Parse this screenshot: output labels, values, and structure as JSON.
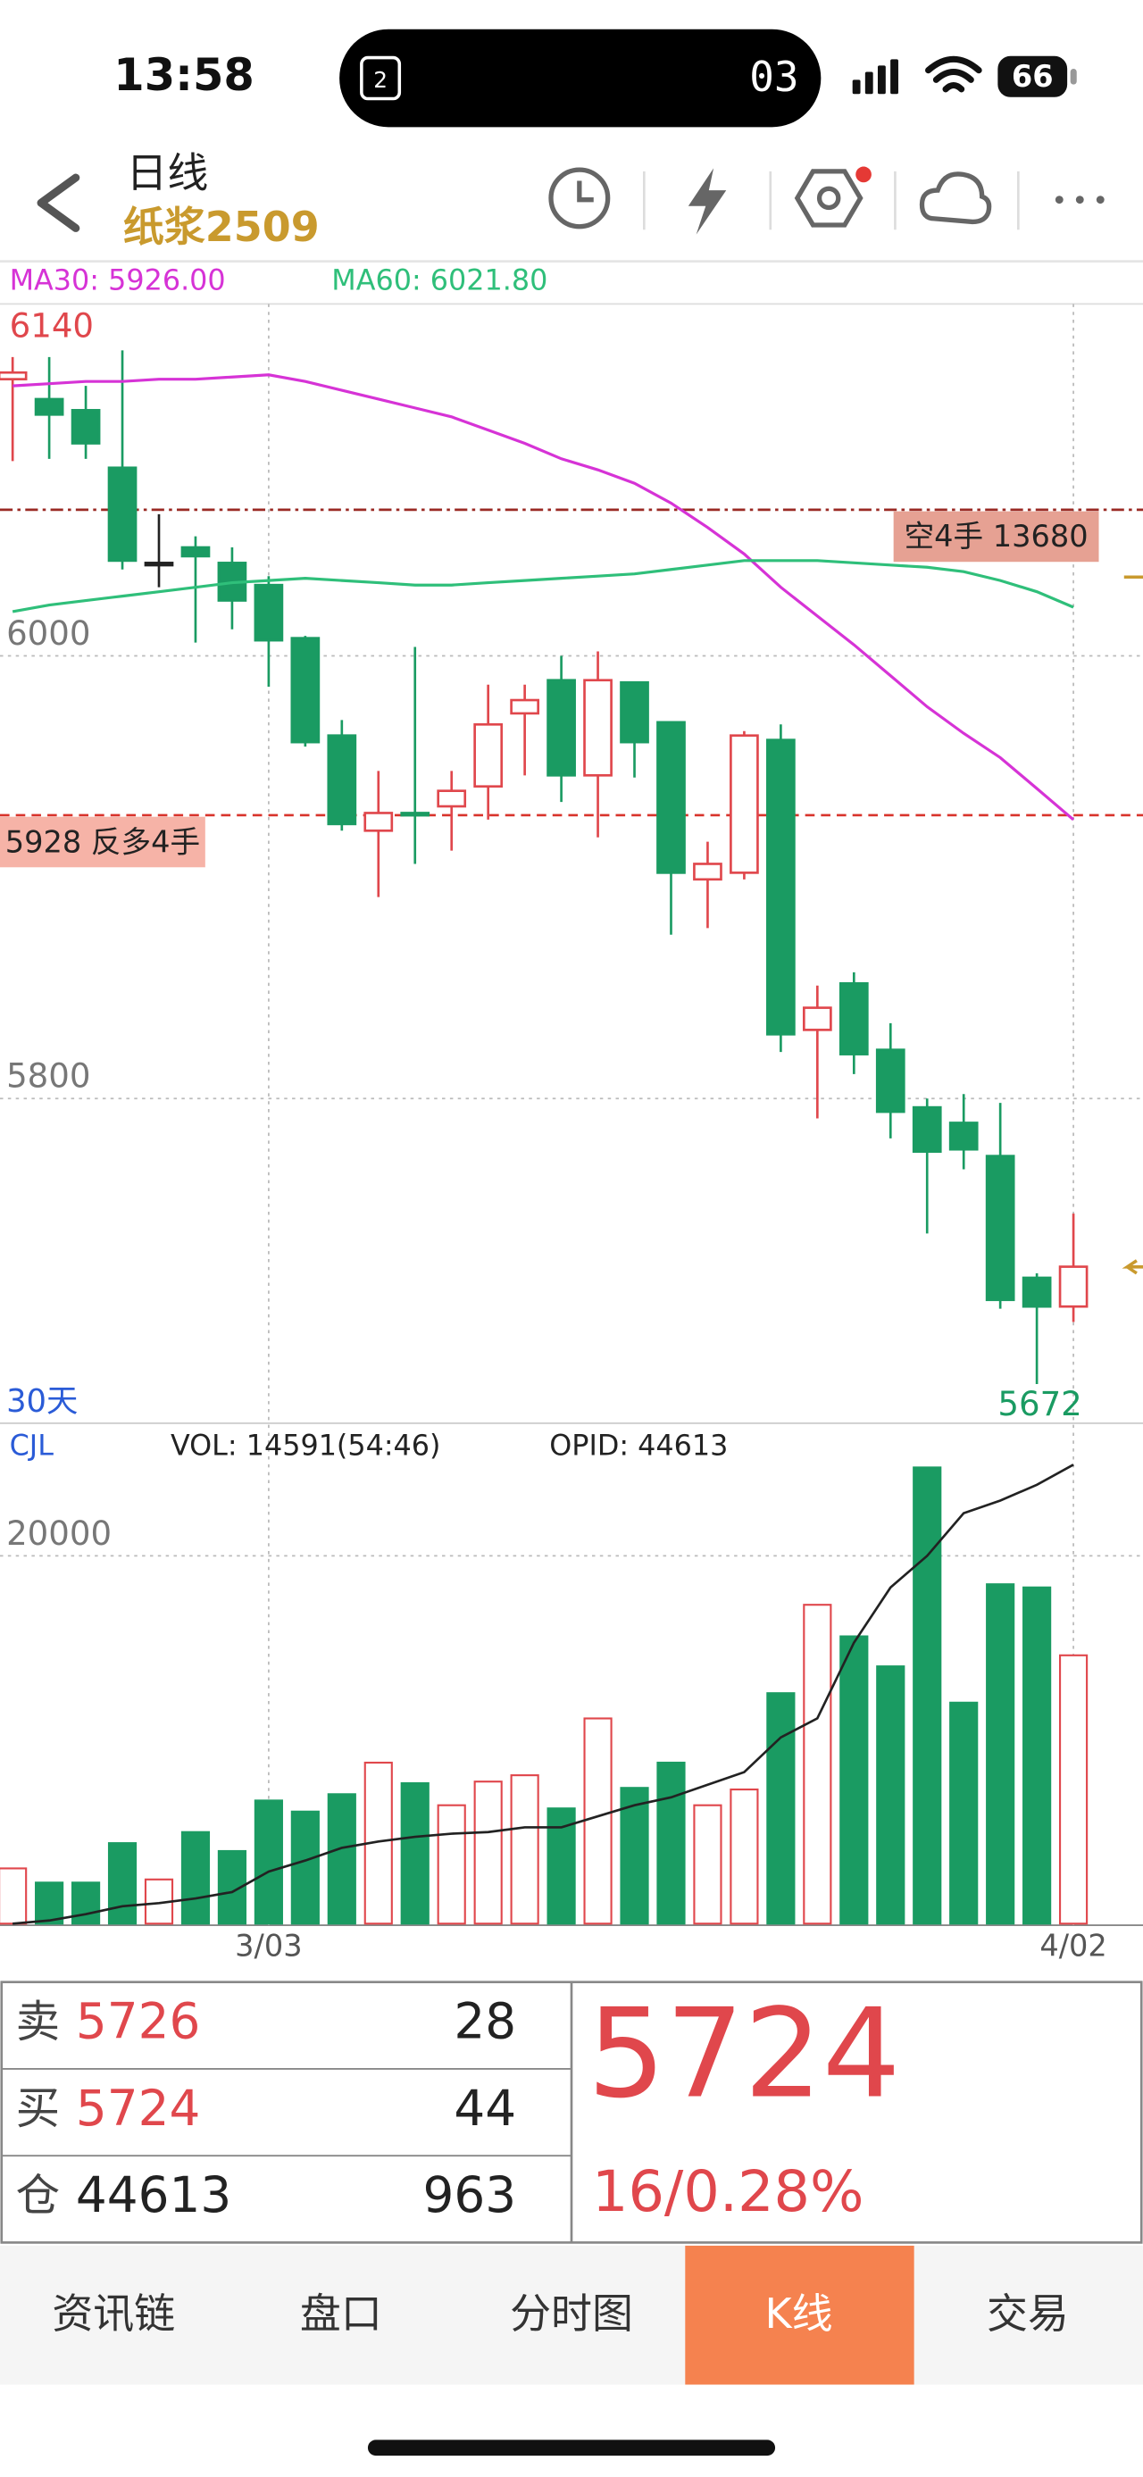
{
  "status_bar": {
    "time": "13:58",
    "island_text": "03",
    "battery": "66"
  },
  "header": {
    "title": "日线",
    "symbol": "纸浆2509"
  },
  "chart_data": [
    {
      "type": "candlestick",
      "categories": [
        null,
        null,
        null,
        null,
        null,
        null,
        null,
        "3/03",
        null,
        null,
        null,
        null,
        null,
        null,
        null,
        null,
        null,
        null,
        null,
        null,
        null,
        null,
        null,
        null,
        null,
        null,
        null,
        null,
        null,
        "4/02"
      ],
      "open": [
        6125,
        6116,
        6111,
        6085,
        6042,
        6049,
        6042,
        6032,
        6008,
        5964,
        5921,
        5929,
        5932,
        5941,
        5974,
        5989,
        5946,
        5988,
        5970,
        5899,
        5902,
        5962,
        5831,
        5852,
        5822,
        5796,
        5789,
        5774,
        5719,
        5706
      ],
      "close": [
        6128,
        6109,
        6096,
        6043,
        6042,
        6045,
        6025,
        6007,
        5961,
        5924,
        5929,
        5928,
        5939,
        5969,
        5980,
        5946,
        5989,
        5961,
        5902,
        5906,
        5964,
        5829,
        5841,
        5820,
        5794,
        5776,
        5777,
        5709,
        5706,
        5724
      ],
      "high": [
        6135,
        6135,
        6122,
        6138,
        6064,
        6054,
        6049,
        6036,
        6009,
        5971,
        5948,
        6004,
        5948,
        5987,
        5987,
        6000,
        6002,
        5988,
        5970,
        5916,
        5966,
        5969,
        5851,
        5857,
        5834,
        5800,
        5802,
        5798,
        5721,
        5748
      ],
      "low": [
        6088,
        6089,
        6089,
        6039,
        6031,
        6006,
        6012,
        5986,
        5959,
        5921,
        5891,
        5906,
        5912,
        5926,
        5946,
        5934,
        5918,
        5945,
        5874,
        5877,
        5899,
        5821,
        5791,
        5811,
        5782,
        5739,
        5768,
        5705,
        5671,
        5699
      ],
      "up_color": "#e0474c",
      "down_color": "#1a9b62",
      "flat_color": "#222222",
      "series": [
        {
          "name": "MA30",
          "legend_label": "MA30: 5926.00",
          "color": "#d633d6",
          "values": [
            6122,
            6123,
            6124,
            6124,
            6125,
            6125,
            6126,
            6127,
            6124,
            6120,
            6116,
            6112,
            6108,
            6102,
            6096,
            6089,
            6084,
            6078,
            6069,
            6058,
            6046,
            6031,
            6018,
            6005,
            5991,
            5977,
            5965,
            5954,
            5940,
            5926
          ]
        },
        {
          "name": "MA60",
          "legend_label": "MA60: 6021.80",
          "color": "#2fbf7a",
          "values": [
            6020,
            6023,
            6025,
            6027,
            6029,
            6031,
            6033,
            6034,
            6035,
            6034,
            6033,
            6032,
            6032,
            6033,
            6034,
            6035,
            6036,
            6037,
            6039,
            6041,
            6043,
            6043,
            6043,
            6042,
            6041,
            6040,
            6038,
            6034,
            6029,
            6022
          ]
        }
      ],
      "ylim": [
        5654,
        6159
      ],
      "yticks": [
        6000,
        5800
      ],
      "grid": true,
      "high_label": 6140,
      "low_label": 5672,
      "period_label": "30天",
      "price_lines": [
        {
          "label": "空4手 13680",
          "value": 6066,
          "color": "#9a2a24",
          "style": "dashdot",
          "side": "right"
        },
        {
          "label": "5928 反多4手",
          "value": 5928,
          "color": "#d8332b",
          "style": "dashed",
          "side": "left"
        }
      ]
    },
    {
      "type": "bar",
      "title": "CJL",
      "series": [
        {
          "name": "VOL",
          "legend_label": "VOL: 14591(54:46)",
          "values": [
            3004,
            2232,
            2232,
            4378,
            2403,
            4979,
            3948,
            6695,
            6094,
            7039,
            8755,
            7639,
            6438,
            7725,
            8069,
            6266,
            11159,
            7382,
            8755,
            6438,
            7296,
            12532,
            17339,
            15622,
            13991,
            24807,
            12017,
            18455,
            18283,
            14591
          ]
        },
        {
          "name": "OPID",
          "legend_label": "OPID: 44613",
          "axis": "y2",
          "color": "#222222",
          "values": [
            20000,
            20169,
            20508,
            20931,
            21100,
            21355,
            21693,
            22794,
            23386,
            24064,
            24402,
            24656,
            24826,
            24910,
            25164,
            25164,
            25757,
            26350,
            26773,
            27450,
            28127,
            29990,
            31006,
            35069,
            38033,
            39726,
            42011,
            42689,
            43536,
            44613
          ]
        }
      ],
      "ylim": [
        0,
        26870
      ],
      "yticks": [
        20000
      ],
      "y2lim": [
        20000,
        46500
      ],
      "grid": true
    }
  ],
  "quote": {
    "rows": [
      {
        "label": "卖",
        "price": 5726,
        "qty": 28
      },
      {
        "label": "买",
        "price": 5724,
        "qty": 44
      },
      {
        "label": "仓",
        "price": 44613,
        "qty": 963
      }
    ],
    "last": 5724,
    "change": "16/0.28%"
  },
  "tabs": {
    "items": [
      "资讯链",
      "盘口",
      "分时图",
      "K线",
      "交易"
    ],
    "active": 3
  }
}
